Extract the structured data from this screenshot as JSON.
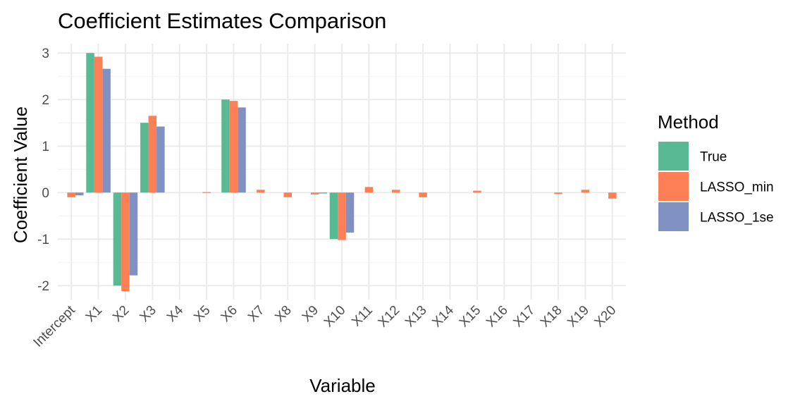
{
  "chart_data": {
    "type": "bar",
    "title": "Coefficient Estimates Comparison",
    "xlabel": "Variable",
    "ylabel": "Coefficient Value",
    "categories": [
      "Intercept",
      "X1",
      "X2",
      "X3",
      "X4",
      "X5",
      "X6",
      "X7",
      "X8",
      "X9",
      "X10",
      "X11",
      "X12",
      "X13",
      "X14",
      "X15",
      "X16",
      "X17",
      "X18",
      "X19",
      "X20"
    ],
    "ylim": [
      -2.3,
      3.2
    ],
    "yticks": [
      -2,
      -1,
      0,
      1,
      2,
      3
    ],
    "grid": true,
    "legend": {
      "title": "Method",
      "position": "right"
    },
    "series": [
      {
        "name": "True",
        "color": "#58b994",
        "values": [
          0,
          3,
          -2,
          1.5,
          0,
          0,
          2,
          0,
          0,
          0,
          -1,
          0,
          0,
          0,
          0,
          0,
          0,
          0,
          0,
          0,
          0
        ]
      },
      {
        "name": "LASSO_min",
        "color": "#fc7f55",
        "values": [
          -0.1,
          2.92,
          -2.12,
          1.65,
          0,
          0.01,
          1.97,
          0.06,
          -0.1,
          -0.04,
          -1.02,
          0.12,
          0.06,
          -0.1,
          0,
          0.04,
          0,
          0,
          -0.03,
          0.06,
          -0.13
        ]
      },
      {
        "name": "LASSO_1se",
        "color": "#7f90c1",
        "values": [
          -0.06,
          2.66,
          -1.78,
          1.42,
          0,
          0,
          1.83,
          0,
          0,
          -0.02,
          -0.86,
          0,
          0,
          0,
          0,
          0,
          0,
          0,
          0,
          0,
          0
        ]
      }
    ]
  }
}
